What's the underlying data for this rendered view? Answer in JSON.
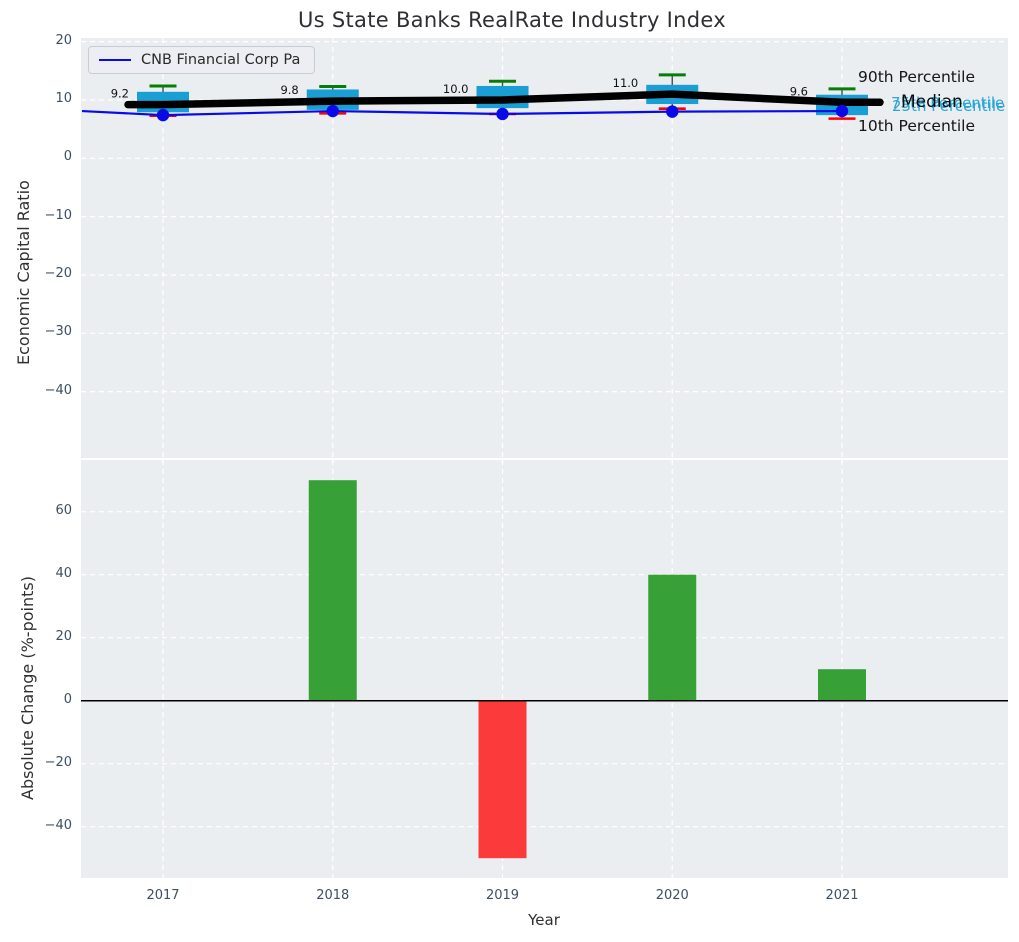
{
  "title": "Us State Banks RealRate Industry Index",
  "legend": {
    "label": "CNB Financial Corp Pa"
  },
  "annotations": {
    "p90": "90th Percentile",
    "p75": "75th Percentile",
    "median": "Median",
    "p25": "25th Percentile",
    "p10": "10th Percentile"
  },
  "colors": {
    "box_fill": "#1a9fd4",
    "whisker_cap_high": "#067d06",
    "whisker_cap_low": "#ff0000",
    "median_line": "#000000",
    "company_line": "#0a0ae8",
    "bar_positive": "#37a137",
    "bar_negative": "#fb3b3b",
    "plot_background": "#eaeef1",
    "grid": "#ffffff",
    "tick_text": "#3d4f63",
    "cyan_text": "#2aa7d8"
  },
  "chart_data": [
    {
      "type": "boxplot",
      "title": "Us State Banks RealRate Industry Index",
      "ylabel": "Economic Capital Ratio",
      "xlabel": "Year",
      "categories": [
        "2017",
        "2018",
        "2019",
        "2020",
        "2021"
      ],
      "yticks": [
        20,
        10,
        0,
        -10,
        -20,
        -30,
        -40
      ],
      "ylim": [
        -51.4,
        20.6
      ],
      "grid": true,
      "legend_position": "upper left",
      "median_labels": [
        "9.2",
        "9.8",
        "10.0",
        "11.0",
        "9.6"
      ],
      "series": [
        {
          "name": "90th Percentile",
          "values": [
            12.4,
            12.3,
            13.2,
            14.3,
            11.9
          ]
        },
        {
          "name": "75th Percentile",
          "values": [
            11.4,
            11.8,
            12.4,
            12.6,
            10.9
          ]
        },
        {
          "name": "Median",
          "values": [
            9.2,
            9.8,
            10.0,
            11.0,
            9.6
          ]
        },
        {
          "name": "25th Percentile",
          "values": [
            7.9,
            8.3,
            8.6,
            9.3,
            7.4
          ]
        },
        {
          "name": "10th Percentile",
          "values": [
            7.3,
            7.7,
            7.6,
            8.5,
            6.8
          ]
        },
        {
          "name": "CNB Financial Corp Pa",
          "values": [
            7.4,
            8.1,
            7.6,
            8.0,
            8.1
          ]
        }
      ]
    },
    {
      "type": "bar",
      "ylabel": "Absolute Change (%-points)",
      "xlabel": "Year",
      "categories": [
        "2017",
        "2018",
        "2019",
        "2020",
        "2021"
      ],
      "values": [
        0,
        70,
        -50,
        40,
        10
      ],
      "yticks": [
        60,
        40,
        20,
        0,
        -20,
        -40
      ],
      "ylim": [
        -56.3,
        76.4
      ],
      "grid": true
    }
  ]
}
